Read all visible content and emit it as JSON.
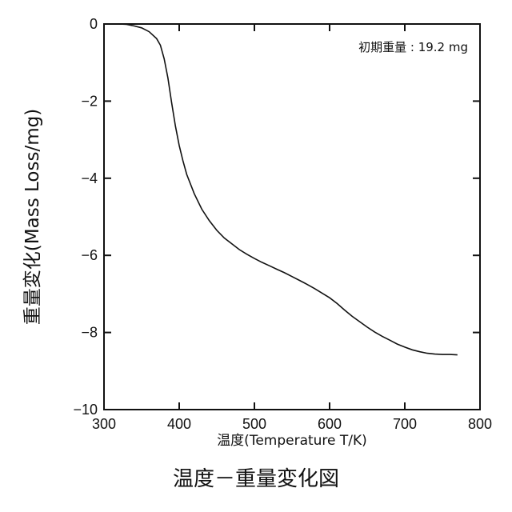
{
  "chart_data": {
    "type": "line",
    "xlabel": "温度(Temperature T/K)",
    "ylabel": "重量変化(Mass Loss/mg)",
    "xlim": [
      300,
      800
    ],
    "ylim": [
      -10,
      0
    ],
    "xticks": [
      300,
      400,
      500,
      600,
      700,
      800
    ],
    "yticks": [
      0,
      -2,
      -4,
      -6,
      -8,
      -10
    ],
    "xtick_labels": [
      "300",
      "400",
      "500",
      "600",
      "700",
      "800"
    ],
    "ytick_labels": [
      "0",
      "−2",
      "−4",
      "−6",
      "−8",
      "−10"
    ],
    "annotation": "初期重量 : 19.2 mg",
    "grid": false,
    "series": [
      {
        "x": [
          320,
          330,
          340,
          350,
          360,
          370,
          375,
          380,
          385,
          390,
          395,
          400,
          405,
          410,
          420,
          430,
          440,
          450,
          460,
          470,
          480,
          490,
          500,
          510,
          520,
          530,
          540,
          550,
          560,
          570,
          580,
          590,
          600,
          610,
          620,
          630,
          640,
          650,
          660,
          670,
          680,
          690,
          700,
          710,
          720,
          730,
          740,
          750,
          760,
          770
        ],
        "y": [
          0,
          -0.01,
          -0.05,
          -0.1,
          -0.2,
          -0.38,
          -0.55,
          -0.9,
          -1.4,
          -2.05,
          -2.65,
          -3.15,
          -3.55,
          -3.9,
          -4.4,
          -4.8,
          -5.1,
          -5.35,
          -5.55,
          -5.7,
          -5.85,
          -5.97,
          -6.08,
          -6.18,
          -6.27,
          -6.36,
          -6.45,
          -6.55,
          -6.65,
          -6.75,
          -6.86,
          -6.98,
          -7.1,
          -7.25,
          -7.42,
          -7.58,
          -7.72,
          -7.86,
          -7.99,
          -8.1,
          -8.2,
          -8.3,
          -8.38,
          -8.45,
          -8.5,
          -8.54,
          -8.56,
          -8.57,
          -8.57,
          -8.58
        ]
      }
    ],
    "colors": {
      "line": "#111111",
      "axis": "#111111"
    }
  },
  "caption": "温度－重量変化図"
}
